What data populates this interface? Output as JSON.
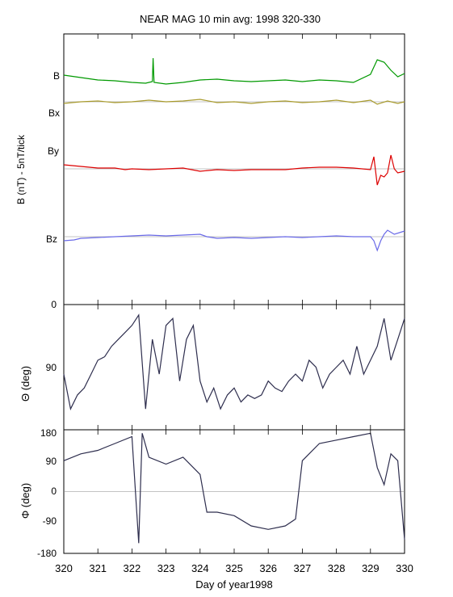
{
  "title": "NEAR MAG 10 min avg: 1998 320-330",
  "colors": {
    "B": "#009900",
    "Bx": "#a89a2c",
    "By": "#dd0000",
    "Bz": "#6a6ae8",
    "dark": "#2e2e4e",
    "zero": "#888888"
  },
  "chart_data": [
    {
      "type": "line",
      "panel": "B",
      "ylabel": "B (nT) - 5nT/tick",
      "yticks": [
        "0"
      ],
      "x": [
        320,
        330
      ],
      "series": [
        {
          "name": "B",
          "label": "B",
          "points": [
            [
              320.0,
              4
            ],
            [
              320.5,
              1
            ],
            [
              321.0,
              -2
            ],
            [
              321.5,
              -3
            ],
            [
              322.0,
              -5
            ],
            [
              322.4,
              -6
            ],
            [
              322.6,
              -4
            ],
            [
              322.62,
              25
            ],
            [
              322.65,
              -5
            ],
            [
              323.0,
              -7
            ],
            [
              323.5,
              -5
            ],
            [
              324.0,
              -2
            ],
            [
              324.5,
              -1
            ],
            [
              325.0,
              -3
            ],
            [
              325.5,
              -4
            ],
            [
              326.0,
              -3
            ],
            [
              326.5,
              -2
            ],
            [
              327.0,
              -4
            ],
            [
              327.5,
              -2
            ],
            [
              328.0,
              -3
            ],
            [
              328.5,
              -5
            ],
            [
              329.0,
              5
            ],
            [
              329.2,
              23
            ],
            [
              329.4,
              20
            ],
            [
              329.6,
              10
            ],
            [
              329.8,
              2
            ],
            [
              330.0,
              6
            ]
          ]
        },
        {
          "name": "Bx",
          "label": "Bx",
          "points": [
            [
              320.0,
              -2
            ],
            [
              320.5,
              0
            ],
            [
              321.0,
              1
            ],
            [
              321.5,
              -1
            ],
            [
              322.0,
              0
            ],
            [
              322.5,
              2
            ],
            [
              323.0,
              0
            ],
            [
              323.5,
              1
            ],
            [
              324.0,
              3
            ],
            [
              324.5,
              -1
            ],
            [
              325.0,
              0
            ],
            [
              325.5,
              -2
            ],
            [
              326.0,
              0
            ],
            [
              326.5,
              1
            ],
            [
              327.0,
              -1
            ],
            [
              327.5,
              0
            ],
            [
              328.0,
              2
            ],
            [
              328.5,
              -1
            ],
            [
              329.0,
              2
            ],
            [
              329.2,
              -3
            ],
            [
              329.5,
              1
            ],
            [
              329.8,
              -2
            ],
            [
              330.0,
              0
            ]
          ]
        },
        {
          "name": "By",
          "label": "By",
          "points": [
            [
              320.0,
              5
            ],
            [
              320.5,
              3
            ],
            [
              321.0,
              1
            ],
            [
              321.5,
              1
            ],
            [
              321.8,
              -1
            ],
            [
              322.0,
              0
            ],
            [
              322.5,
              -1
            ],
            [
              323.0,
              0
            ],
            [
              323.5,
              1
            ],
            [
              324.0,
              -3
            ],
            [
              324.5,
              -1
            ],
            [
              325.0,
              -2
            ],
            [
              325.5,
              -1
            ],
            [
              326.0,
              -1
            ],
            [
              326.5,
              -1
            ],
            [
              327.0,
              1
            ],
            [
              327.5,
              2
            ],
            [
              328.0,
              2
            ],
            [
              328.5,
              1
            ],
            [
              329.0,
              -1
            ],
            [
              329.1,
              15
            ],
            [
              329.2,
              -20
            ],
            [
              329.3,
              -8
            ],
            [
              329.4,
              -10
            ],
            [
              329.5,
              -5
            ],
            [
              329.6,
              17
            ],
            [
              329.7,
              0
            ],
            [
              329.8,
              -5
            ],
            [
              330.0,
              -3
            ]
          ]
        },
        {
          "name": "Bz",
          "label": "Bz",
          "points": [
            [
              320.0,
              -5
            ],
            [
              320.3,
              -4
            ],
            [
              320.5,
              -2
            ],
            [
              321.0,
              -1
            ],
            [
              321.5,
              0
            ],
            [
              322.0,
              1
            ],
            [
              322.5,
              2
            ],
            [
              323.0,
              1
            ],
            [
              323.5,
              2
            ],
            [
              324.0,
              3
            ],
            [
              324.2,
              0
            ],
            [
              324.5,
              -2
            ],
            [
              325.0,
              -1
            ],
            [
              325.5,
              -2
            ],
            [
              326.0,
              -1
            ],
            [
              326.5,
              0
            ],
            [
              327.0,
              -1
            ],
            [
              327.5,
              0
            ],
            [
              328.0,
              1
            ],
            [
              328.5,
              0
            ],
            [
              329.0,
              0
            ],
            [
              329.1,
              -5
            ],
            [
              329.2,
              -17
            ],
            [
              329.3,
              -5
            ],
            [
              329.4,
              3
            ],
            [
              329.5,
              8
            ],
            [
              329.7,
              3
            ],
            [
              330.0,
              7
            ]
          ]
        }
      ]
    },
    {
      "type": "line",
      "panel": "theta",
      "ylabel": "Θ (deg)",
      "ylim": [
        0,
        180
      ],
      "yticks": [
        "0",
        "90",
        "180"
      ],
      "series": [
        {
          "name": "Θ",
          "points": [
            [
              320.0,
              100
            ],
            [
              320.2,
              150
            ],
            [
              320.4,
              130
            ],
            [
              320.6,
              120
            ],
            [
              320.8,
              100
            ],
            [
              321.0,
              80
            ],
            [
              321.2,
              75
            ],
            [
              321.4,
              60
            ],
            [
              321.6,
              50
            ],
            [
              321.8,
              40
            ],
            [
              322.0,
              30
            ],
            [
              322.2,
              15
            ],
            [
              322.4,
              150
            ],
            [
              322.6,
              50
            ],
            [
              322.8,
              100
            ],
            [
              323.0,
              30
            ],
            [
              323.2,
              20
            ],
            [
              323.4,
              110
            ],
            [
              323.6,
              50
            ],
            [
              323.8,
              30
            ],
            [
              324.0,
              110
            ],
            [
              324.2,
              140
            ],
            [
              324.4,
              120
            ],
            [
              324.6,
              150
            ],
            [
              324.8,
              130
            ],
            [
              325.0,
              120
            ],
            [
              325.2,
              140
            ],
            [
              325.4,
              130
            ],
            [
              325.6,
              135
            ],
            [
              325.8,
              130
            ],
            [
              326.0,
              110
            ],
            [
              326.2,
              120
            ],
            [
              326.4,
              125
            ],
            [
              326.6,
              110
            ],
            [
              326.8,
              100
            ],
            [
              327.0,
              110
            ],
            [
              327.2,
              80
            ],
            [
              327.4,
              90
            ],
            [
              327.6,
              120
            ],
            [
              327.8,
              100
            ],
            [
              328.0,
              90
            ],
            [
              328.2,
              80
            ],
            [
              328.4,
              100
            ],
            [
              328.6,
              60
            ],
            [
              328.8,
              100
            ],
            [
              329.0,
              80
            ],
            [
              329.2,
              60
            ],
            [
              329.4,
              20
            ],
            [
              329.6,
              80
            ],
            [
              329.8,
              50
            ],
            [
              330.0,
              20
            ]
          ]
        }
      ]
    },
    {
      "type": "line",
      "panel": "phi",
      "ylabel": "Φ (deg)",
      "ylim": [
        -180,
        180
      ],
      "yticks": [
        "180",
        "90",
        "0",
        "-90",
        "-180"
      ],
      "series": [
        {
          "name": "Φ",
          "points": [
            [
              320.0,
              90
            ],
            [
              320.5,
              110
            ],
            [
              321.0,
              120
            ],
            [
              321.5,
              140
            ],
            [
              322.0,
              160
            ],
            [
              322.2,
              -150
            ],
            [
              322.3,
              170
            ],
            [
              322.5,
              100
            ],
            [
              323.0,
              80
            ],
            [
              323.5,
              100
            ],
            [
              324.0,
              50
            ],
            [
              324.2,
              -60
            ],
            [
              324.5,
              -60
            ],
            [
              325.0,
              -70
            ],
            [
              325.5,
              -100
            ],
            [
              326.0,
              -110
            ],
            [
              326.5,
              -100
            ],
            [
              326.8,
              -80
            ],
            [
              327.0,
              90
            ],
            [
              327.5,
              140
            ],
            [
              328.0,
              150
            ],
            [
              328.5,
              160
            ],
            [
              329.0,
              170
            ],
            [
              329.2,
              70
            ],
            [
              329.4,
              20
            ],
            [
              329.6,
              110
            ],
            [
              329.8,
              90
            ],
            [
              330.0,
              -140
            ]
          ]
        }
      ]
    }
  ],
  "x_axis": {
    "label": "Day of year1998",
    "ticks": [
      "320",
      "321",
      "322",
      "323",
      "324",
      "325",
      "326",
      "327",
      "328",
      "329",
      "330"
    ]
  }
}
